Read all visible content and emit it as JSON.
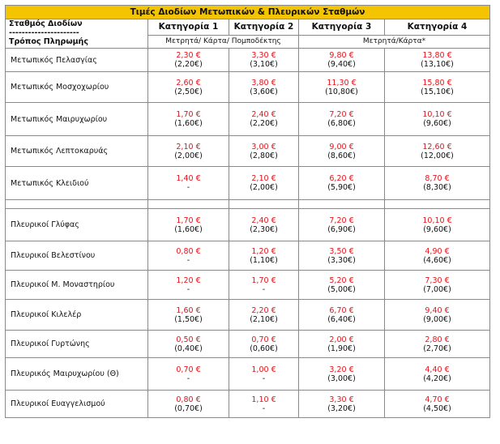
{
  "title": "Τιμές Διοδίων Μετωπικών & Πλευρικών Σταθμών",
  "header": {
    "station_label": "Σταθμός Διοδίων",
    "dashes": "----------------------",
    "payment_label": "Τρόπος Πληρωμής",
    "categories": [
      "Κατηγορία 1",
      "Κατηγορία 2",
      "Κατηγορία 3",
      "Κατηγορία 4"
    ],
    "payment_cat12": "Μετρητά/ Κάρτα/ Πομποδέκτης",
    "payment_cat34": "Μετρητά/Κάρτα*"
  },
  "frontal": [
    {
      "name": "Μετωπικός Πελασγίας",
      "prices": [
        [
          "2,30 €",
          "(2,20€)"
        ],
        [
          "3,30 €",
          "(3,10€)"
        ],
        [
          "9,80 €",
          "(9,40€)"
        ],
        [
          "13,80 €",
          "(13,10€)"
        ]
      ]
    },
    {
      "name": "Μετωπικός Μοσχοχωρίου",
      "prices": [
        [
          "2,60 €",
          "(2,50€)"
        ],
        [
          "3,80 €",
          "(3,60€)"
        ],
        [
          "11,30 €",
          "(10,80€)"
        ],
        [
          "15,80 €",
          "(15,10€)"
        ]
      ]
    },
    {
      "name": "Μετωπικός Μαιρυχωρίου",
      "prices": [
        [
          "1,70 €",
          "(1,60€)"
        ],
        [
          "2,40 €",
          "(2,20€)"
        ],
        [
          "7,20 €",
          "(6,80€)"
        ],
        [
          "10,10 €",
          "(9,60€)"
        ]
      ]
    },
    {
      "name": "Μετωπικός Λεπτοκαρυάς",
      "prices": [
        [
          "2,10 €",
          "(2,00€)"
        ],
        [
          "3,00 €",
          "(2,80€)"
        ],
        [
          "9,00 €",
          "(8,60€)"
        ],
        [
          "12,60 €",
          "(12,00€)"
        ]
      ]
    },
    {
      "name": "Μετωπικός Κλειδιού",
      "prices": [
        [
          "1,40 €",
          "-"
        ],
        [
          "2,10 €",
          "(2,00€)"
        ],
        [
          "6,20 €",
          "(5,90€)"
        ],
        [
          "8,70 €",
          "(8,30€)"
        ]
      ]
    }
  ],
  "lateral": [
    {
      "name": "Πλευρικοί Γλύφας",
      "prices": [
        [
          "1,70 €",
          "(1,60€)"
        ],
        [
          "2,40 €",
          "(2,30€)"
        ],
        [
          "7,20 €",
          "(6,90€)"
        ],
        [
          "10,10 €",
          "(9,60€)"
        ]
      ]
    },
    {
      "name": "Πλευρικοί Βελεστίνου",
      "prices": [
        [
          "0,80 €",
          "-"
        ],
        [
          "1,20 €",
          "(1,10€)"
        ],
        [
          "3,50 €",
          "(3,30€)"
        ],
        [
          "4,90 €",
          "(4,60€)"
        ]
      ]
    },
    {
      "name": "Πλευρικοί Μ. Μοναστηρίου",
      "prices": [
        [
          "1,20 €",
          "-"
        ],
        [
          "1,70 €",
          "-"
        ],
        [
          "5,20 €",
          "(5,00€)"
        ],
        [
          "7,30 €",
          "(7,00€)"
        ]
      ]
    },
    {
      "name": "Πλευρικοί Κιλελέρ",
      "prices": [
        [
          "1,60 €",
          "(1,50€)"
        ],
        [
          "2,20 €",
          "(2,10€)"
        ],
        [
          "6,70 €",
          "(6,40€)"
        ],
        [
          "9,40 €",
          "(9,00€)"
        ]
      ]
    },
    {
      "name": "Πλευρικοί Γυρτώνης",
      "prices": [
        [
          "0,50 €",
          "(0,40€)"
        ],
        [
          "0,70 €",
          "(0,60€)"
        ],
        [
          "2,00 €",
          "(1,90€)"
        ],
        [
          "2,80 €",
          "(2,70€)"
        ]
      ]
    },
    {
      "name": "Πλευρικός Μαιρυχωρίου (Θ)",
      "prices": [
        [
          "0,70 €",
          "-"
        ],
        [
          "1,00 €",
          "-"
        ],
        [
          "3,20 €",
          "(3,00€)"
        ],
        [
          "4,40 €",
          "(4,20€)"
        ]
      ]
    },
    {
      "name": "Πλευρικοί Ευαγγελισμού",
      "prices": [
        [
          "0,80 €",
          "(0,70€)"
        ],
        [
          "1,10 €",
          "-"
        ],
        [
          "3,30 €",
          "(3,20€)"
        ],
        [
          "4,70 €",
          "(4,50€)"
        ]
      ]
    }
  ],
  "colors": {
    "header_bg": "#f5c400",
    "cash_price": "#e2141c",
    "card_price": "#111111"
  }
}
